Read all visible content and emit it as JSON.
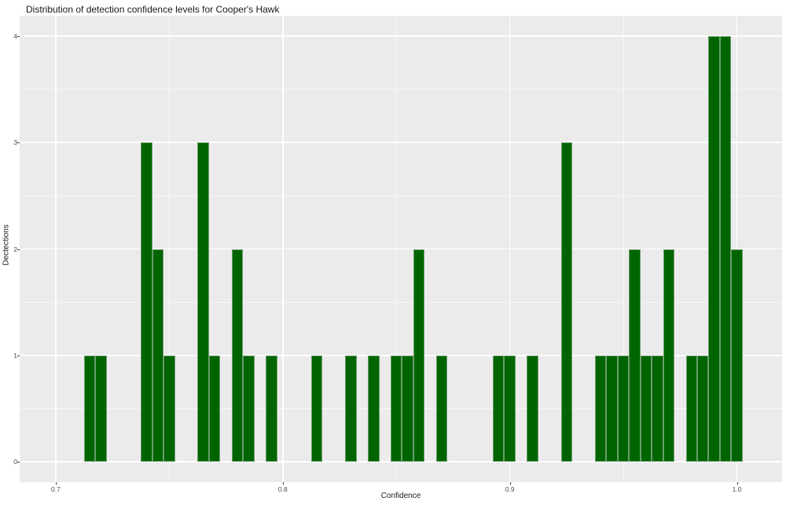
{
  "title": "Distribution of detection confidence levels for Cooper's Hawk",
  "chart_data": {
    "type": "bar",
    "subtype": "histogram",
    "title": "Distribution of detection confidence levels for Cooper's Hawk",
    "xlabel": "Confidence",
    "ylabel": "Dectections",
    "xlim": [
      0.6841,
      1.0199
    ],
    "ylim": [
      -0.192,
      4.192
    ],
    "x_major_ticks": [
      {
        "value": 0.7,
        "label": "0.7"
      },
      {
        "value": 0.8,
        "label": "0.8"
      },
      {
        "value": 0.9,
        "label": "0.9"
      },
      {
        "value": 1.0,
        "label": "1.0"
      }
    ],
    "x_minor_ticks": [
      0.75,
      0.85,
      0.95
    ],
    "y_major_ticks": [
      {
        "value": 0,
        "label": "0"
      },
      {
        "value": 1,
        "label": "1"
      },
      {
        "value": 2,
        "label": "2"
      },
      {
        "value": 3,
        "label": "3"
      },
      {
        "value": 4,
        "label": "4"
      }
    ],
    "y_minor_ticks": [
      0.5,
      1.5,
      2.5,
      3.5
    ],
    "grid": true,
    "legend": "none",
    "bin_width": 0.005,
    "bins": [
      {
        "x": 0.715,
        "count": 1
      },
      {
        "x": 0.72,
        "count": 1
      },
      {
        "x": 0.74,
        "count": 3
      },
      {
        "x": 0.745,
        "count": 2
      },
      {
        "x": 0.75,
        "count": 1
      },
      {
        "x": 0.765,
        "count": 3
      },
      {
        "x": 0.77,
        "count": 1
      },
      {
        "x": 0.78,
        "count": 2
      },
      {
        "x": 0.785,
        "count": 1
      },
      {
        "x": 0.795,
        "count": 1
      },
      {
        "x": 0.815,
        "count": 1
      },
      {
        "x": 0.83,
        "count": 1
      },
      {
        "x": 0.84,
        "count": 1
      },
      {
        "x": 0.85,
        "count": 1
      },
      {
        "x": 0.855,
        "count": 1
      },
      {
        "x": 0.86,
        "count": 2
      },
      {
        "x": 0.87,
        "count": 1
      },
      {
        "x": 0.895,
        "count": 1
      },
      {
        "x": 0.9,
        "count": 1
      },
      {
        "x": 0.91,
        "count": 1
      },
      {
        "x": 0.925,
        "count": 3
      },
      {
        "x": 0.94,
        "count": 1
      },
      {
        "x": 0.945,
        "count": 1
      },
      {
        "x": 0.95,
        "count": 1
      },
      {
        "x": 0.955,
        "count": 2
      },
      {
        "x": 0.96,
        "count": 1
      },
      {
        "x": 0.965,
        "count": 1
      },
      {
        "x": 0.97,
        "count": 2
      },
      {
        "x": 0.98,
        "count": 1
      },
      {
        "x": 0.985,
        "count": 1
      },
      {
        "x": 0.99,
        "count": 4
      },
      {
        "x": 0.995,
        "count": 4
      },
      {
        "x": 1.0,
        "count": 2
      }
    ],
    "colors": {
      "bar_fill": "#006400",
      "bar_border": "#6b9e6b",
      "panel_background": "#EBEBEB",
      "grid": "#FFFFFF",
      "tick_text": "#4d4d4d",
      "label_text": "#1a1a1a"
    }
  }
}
